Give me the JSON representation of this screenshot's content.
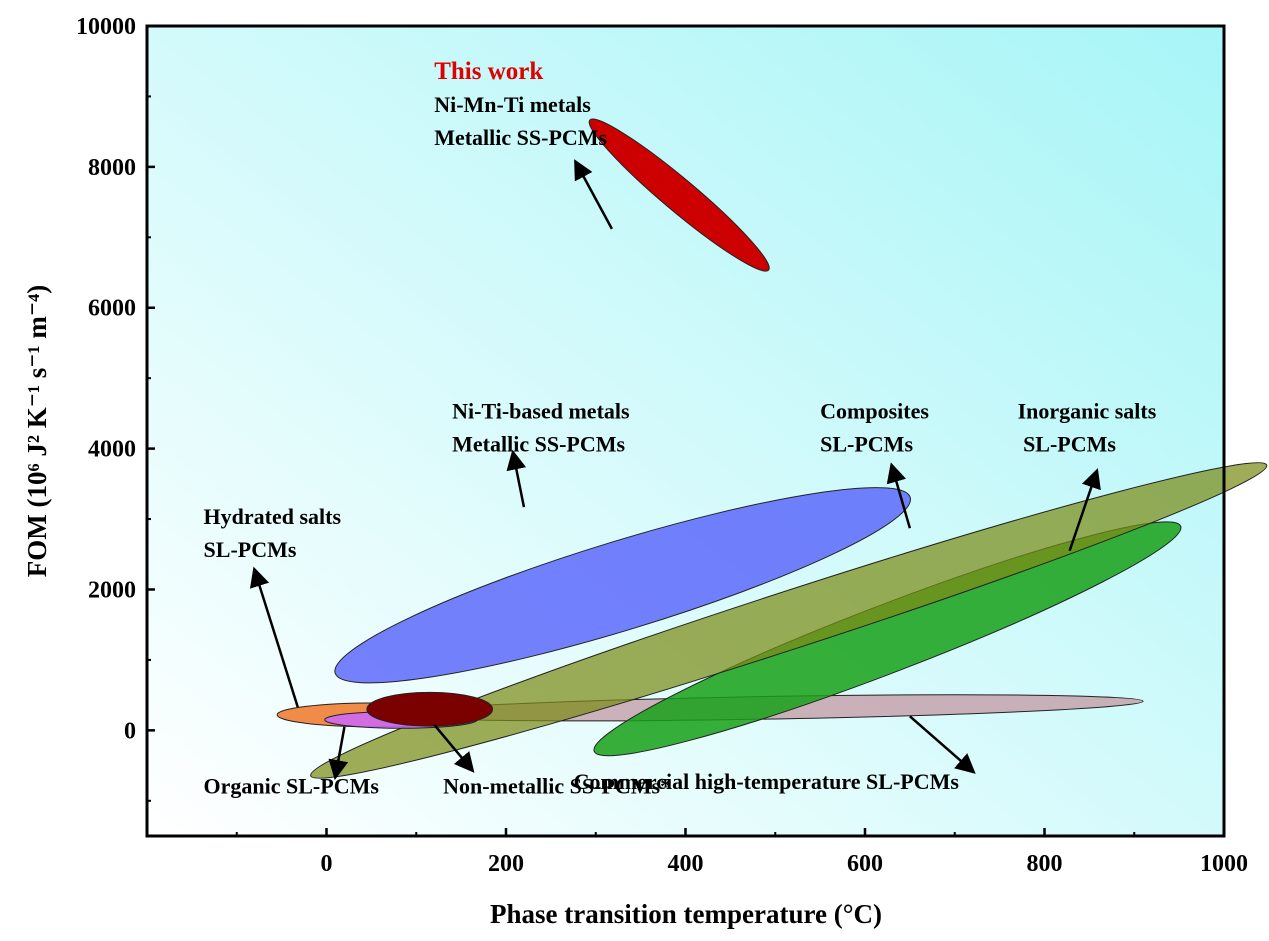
{
  "chart_data": {
    "type": "scatter",
    "title": "",
    "xlabel": "Phase transition temperature (°C)",
    "ylabel": "FOM (10⁶ J² K⁻¹ s⁻¹ m⁻⁴)",
    "xlim": [
      -200,
      1000
    ],
    "ylim": [
      -1500,
      10000
    ],
    "x_ticks": [
      "0",
      "200",
      "400",
      "600",
      "800",
      "1000"
    ],
    "y_ticks": [
      "0",
      "2000",
      "4000",
      "6000",
      "8000",
      "10000"
    ],
    "background": {
      "from": "#ffffff",
      "to": "#a7f5f7"
    },
    "regions": [
      {
        "name": "Commercial high-temperature SL-PCMs",
        "cx": 490,
        "cy": 320,
        "rx": 420,
        "ry": 160,
        "angle_deg": -1,
        "color": "#c49ea8",
        "opacity": 0.8,
        "label_lines": [
          "Commercial high-temperature SL-PCMs"
        ],
        "label_pos": [
          490,
          -830
        ],
        "label_anchor": "middle",
        "arrow": {
          "from": [
            650,
            200
          ],
          "to": [
            720,
            -580
          ]
        }
      },
      {
        "name": "Inorganic salts SL-PCMs",
        "cx": 625,
        "cy": 1300,
        "rx": 350,
        "ry": 480,
        "angle_deg": -21,
        "color": "#18a018",
        "opacity": 0.85,
        "label_lines": [
          "Inorganic salts",
          " SL-PCMs"
        ],
        "label_pos": [
          770,
          4430
        ],
        "label_anchor": "start",
        "arrow": {
          "from": [
            828,
            2550
          ],
          "to": [
            858,
            3670
          ]
        }
      },
      {
        "name": "Composites SL-PCMs",
        "cx": 515,
        "cy": 1560,
        "rx": 560,
        "ry": 410,
        "angle_deg": -18,
        "color": "#7c8c16",
        "opacity": 0.72,
        "label_lines": [
          "Composites",
          "SL-PCMs"
        ],
        "label_pos": [
          550,
          4430
        ],
        "label_anchor": "start",
        "arrow": {
          "from": [
            650,
            2870
          ],
          "to": [
            630,
            3750
          ]
        }
      },
      {
        "name": "Ni-Ti-based metals Metallic SS-PCMs",
        "cx": 330,
        "cy": 2060,
        "rx": 335,
        "ry": 630,
        "angle_deg": -17,
        "color": "#5560fb",
        "opacity": 0.8,
        "label_lines": [
          "Ni-Ti-based metals",
          "Metallic SS-PCMs"
        ],
        "label_pos": [
          140,
          4430
        ],
        "label_anchor": "start",
        "arrow": {
          "from": [
            220,
            3170
          ],
          "to": [
            208,
            3930
          ]
        }
      },
      {
        "name": "Hydrated salts SL-PCMs",
        "cx": 55,
        "cy": 220,
        "rx": 110,
        "ry": 170,
        "angle_deg": 0,
        "color": "#f07828",
        "opacity": 0.85,
        "label_lines": [
          "Hydrated salts",
          "SL-PCMs"
        ],
        "label_pos": [
          -137,
          2930
        ],
        "label_anchor": "start",
        "arrow": {
          "from": [
            -32,
            330
          ],
          "to": [
            -80,
            2270
          ]
        }
      },
      {
        "name": "Organic SL-PCMs",
        "cx": 83,
        "cy": 150,
        "rx": 85,
        "ry": 120,
        "angle_deg": 0,
        "color": "#cc66ff",
        "opacity": 0.85,
        "label_lines": [
          "Organic SL-PCMs"
        ],
        "label_pos": [
          -137,
          -900
        ],
        "label_anchor": "start",
        "arrow": {
          "from": [
            20,
            50
          ],
          "to": [
            10,
            -650
          ]
        }
      },
      {
        "name": "Non-metallic SS-PCMs*",
        "cx": 115,
        "cy": 300,
        "rx": 70,
        "ry": 240,
        "angle_deg": 0,
        "color": "#7b0000",
        "opacity": 1.0,
        "label_lines": [
          "Non-metallic SS-PCMs*"
        ],
        "label_pos": [
          130,
          -900
        ],
        "label_anchor": "start",
        "arrow": {
          "from": [
            120,
            80
          ],
          "to": [
            162,
            -560
          ]
        }
      },
      {
        "name": "This work Ni-Mn-Ti metals Metallic SS-PCMs",
        "cx": 393,
        "cy": 7600,
        "rx": 130,
        "ry": 230,
        "angle_deg": 40,
        "color": "#cc0000",
        "opacity": 1.0,
        "label_lines": [
          "This work",
          "Ni-Mn-Ti metals",
          "Metallic SS-PCMs"
        ],
        "label_pos": [
          120,
          9250
        ],
        "label_anchor": "start",
        "label_first_color": "#e00000",
        "arrow": {
          "from": [
            318,
            7120
          ],
          "to": [
            278,
            8060
          ]
        }
      }
    ]
  }
}
